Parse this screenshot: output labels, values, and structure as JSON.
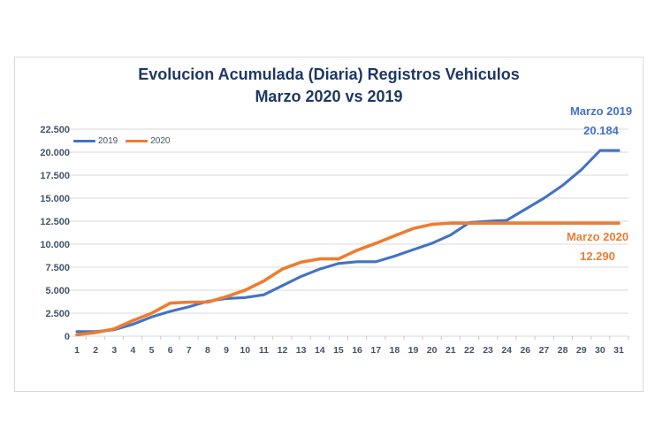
{
  "chart": {
    "title_line1": "Evolucion Acumulada (Diaria) Registros Vehiculos",
    "title_line2": "Marzo 2020 vs 2019",
    "annotations": [
      {
        "label": "Marzo 2019",
        "value": "20.184",
        "color": "#4472c4"
      },
      {
        "label": "Marzo 2020",
        "value": "12.290",
        "color": "#ed7d31"
      }
    ]
  },
  "chart_data": {
    "type": "line",
    "title": "Evolucion Acumulada (Diaria) Registros Vehiculos Marzo 2020 vs 2019",
    "xlabel": "",
    "ylabel": "",
    "grid": true,
    "legend_position": "top-left-inside",
    "categories": [
      "1",
      "2",
      "3",
      "4",
      "5",
      "6",
      "7",
      "8",
      "9",
      "10",
      "11",
      "12",
      "13",
      "14",
      "15",
      "16",
      "17",
      "18",
      "19",
      "20",
      "21",
      "22",
      "23",
      "24",
      "26",
      "27",
      "28",
      "29",
      "30",
      "31"
    ],
    "series": [
      {
        "name": "2019",
        "color": "#4472c4",
        "final_total": 20184,
        "values": [
          500,
          500,
          700,
          1300,
          2100,
          2700,
          3200,
          3800,
          4100,
          4200,
          4500,
          5500,
          6500,
          7300,
          7900,
          8100,
          8100,
          8700,
          9400,
          10100,
          11000,
          12350,
          12500,
          12600,
          13800,
          15000,
          16400,
          18100,
          20184,
          20184
        ]
      },
      {
        "name": "2020",
        "color": "#ed7d31",
        "final_total": 12290,
        "values": [
          150,
          400,
          800,
          1700,
          2500,
          3600,
          3700,
          3700,
          4300,
          5000,
          6000,
          7300,
          8050,
          8400,
          8400,
          9350,
          10100,
          10900,
          11700,
          12150,
          12290,
          12290,
          12290,
          12290,
          12290,
          12290,
          12290,
          12290,
          12290,
          12290
        ]
      }
    ],
    "ylim": [
      0,
      22500
    ],
    "ytick_values": [
      0,
      2500,
      5000,
      7500,
      10000,
      12500,
      15000,
      17500,
      20000,
      22500
    ],
    "ytick_labels": [
      "0",
      "2.500",
      "5.000",
      "7.500",
      "10.000",
      "12.500",
      "15.000",
      "17.500",
      "20.000",
      "22.500"
    ],
    "axis_text_color": "#44546a",
    "gridline_color": "#d9d9d9",
    "tick_color": "#c6c9cc"
  }
}
